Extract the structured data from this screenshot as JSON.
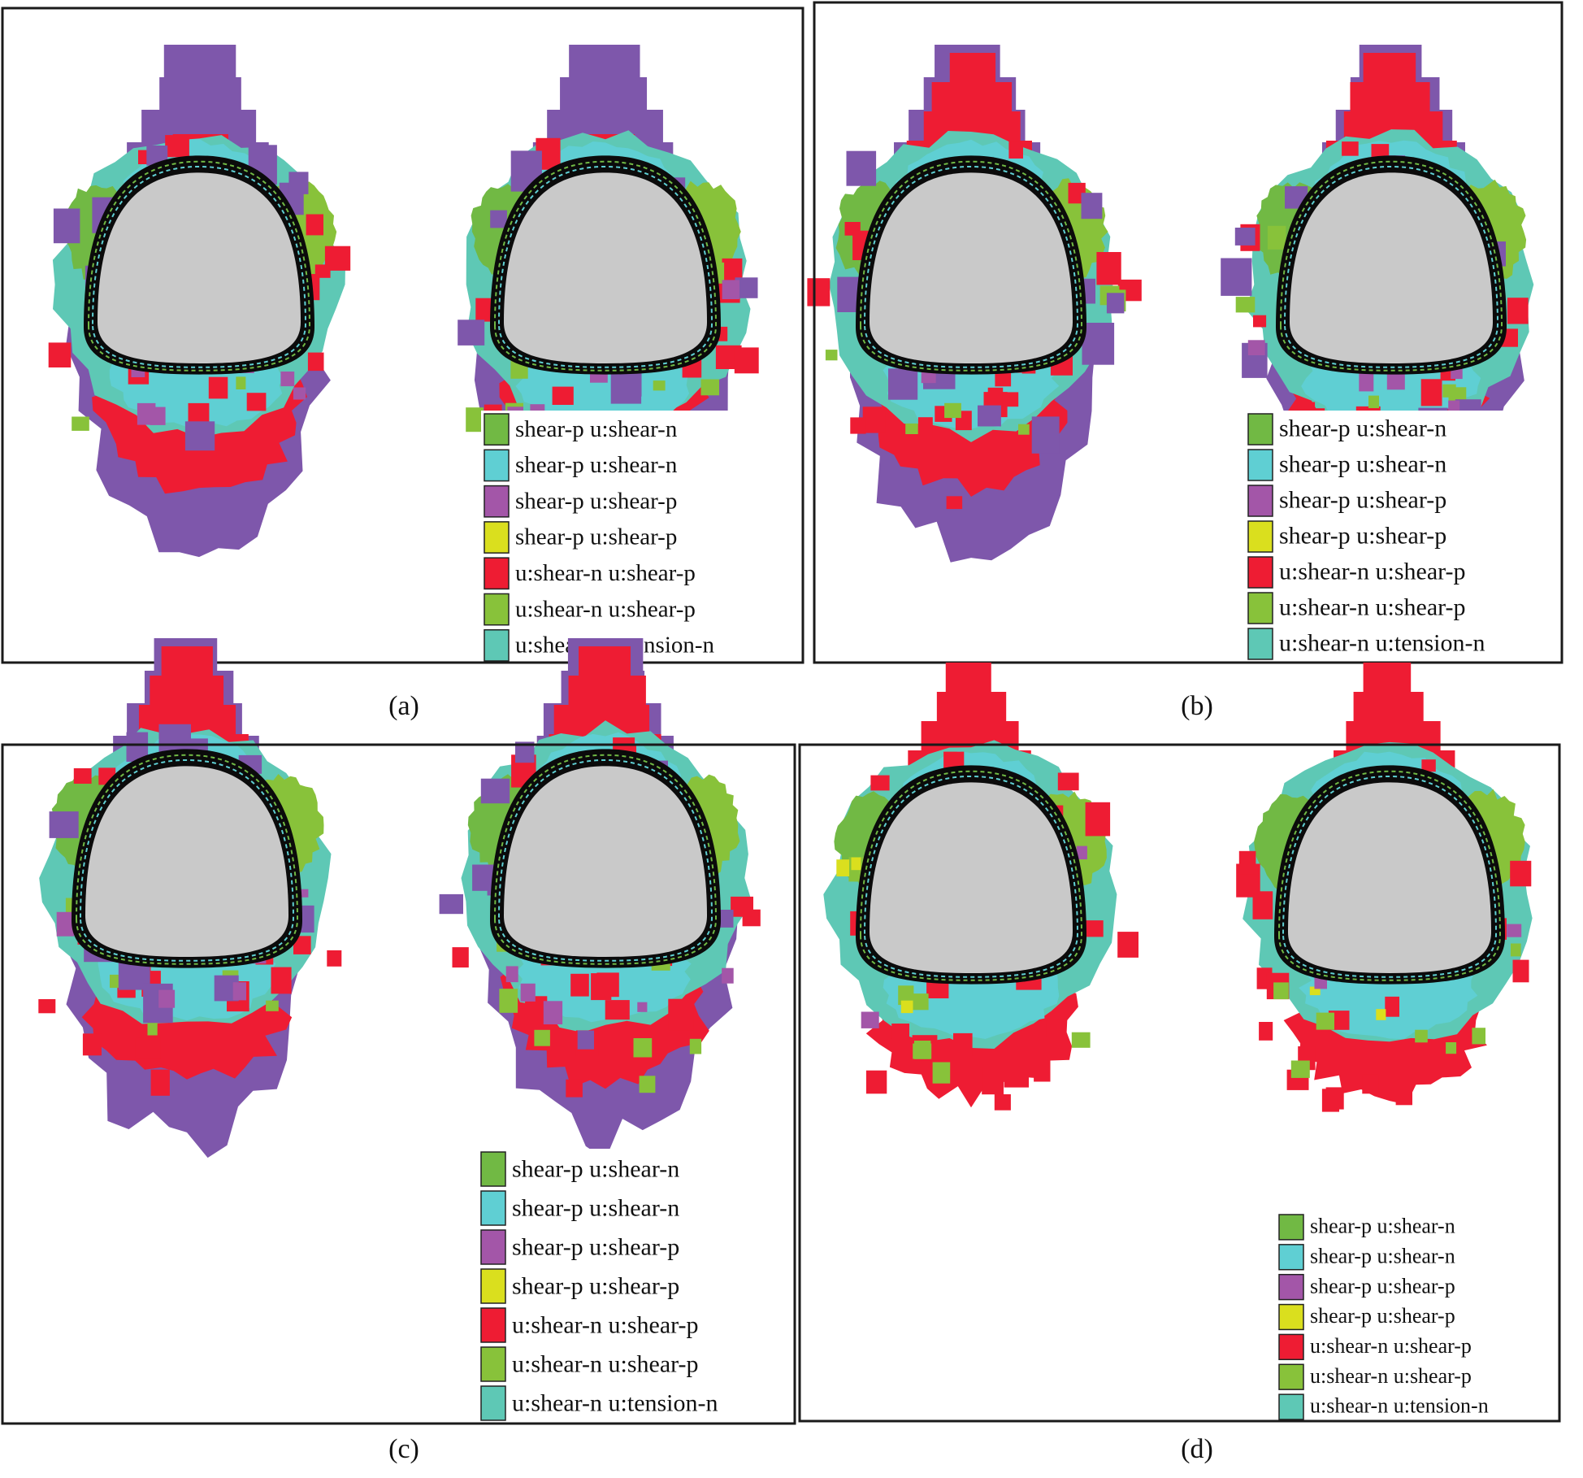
{
  "colors": {
    "green": "#71b944",
    "cyan": "#5fcfd3",
    "magenta": "#a356a8",
    "yellow": "#dadf1e",
    "red": "#ee1c33",
    "lime": "#88c23a",
    "teal": "#5ec8b5",
    "purple": "#7e57ab",
    "core": "#c9c9c9",
    "lining": "#0b0b0b",
    "frame": "#1a1a1a"
  },
  "legend_items": [
    {
      "label": "shear-p u:shear-n",
      "color": "green"
    },
    {
      "label": "shear-p u:shear-n",
      "color": "cyan"
    },
    {
      "label": "shear-p u:shear-p",
      "color": "magenta"
    },
    {
      "label": "shear-p u:shear-p",
      "color": "yellow"
    },
    {
      "label": "u:shear-n u:shear-p",
      "color": "red"
    },
    {
      "label": "u:shear-n u:shear-p",
      "color": "lime"
    },
    {
      "label": "u:shear-n u:tension-n",
      "color": "teal"
    }
  ],
  "panels": [
    {
      "caption": "(a)",
      "outer_zone": "purple"
    },
    {
      "caption": "(b)",
      "outer_zone": "purple"
    },
    {
      "caption": "(c)",
      "outer_zone": "purple"
    },
    {
      "caption": "(d)",
      "outer_zone": "red"
    }
  ]
}
